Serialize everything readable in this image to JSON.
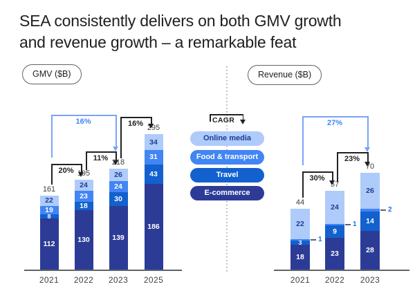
{
  "title": {
    "line1": "SEA consistently delivers on both GMV growth",
    "line2": "and revenue growth – a remarkable feat"
  },
  "legend": {
    "cagr_label": "CAGR",
    "items": [
      {
        "label": "Online media",
        "bg": "#aecbfa",
        "fg": "#1c3e94"
      },
      {
        "label": "Food & transport",
        "bg": "#4285f4",
        "fg": "#ffffff"
      },
      {
        "label": "Travel",
        "bg": "#1261cf",
        "fg": "#ffffff"
      },
      {
        "label": "E-commerce",
        "bg": "#2c3c96",
        "fg": "#ffffff"
      }
    ]
  },
  "colors": {
    "accent_blue_text": "#4285f4",
    "accent_blue_line": "#7aa3f7",
    "black": "#202124",
    "light_segment_text": "#1c3e94",
    "gray_text": "#3c4043"
  },
  "chart_data": [
    {
      "id": "gmv",
      "type": "bar",
      "title": "GMV ($B)",
      "categories": [
        "2021",
        "2022",
        "2023",
        "2025"
      ],
      "totals": [
        161,
        195,
        218,
        295
      ],
      "series": [
        {
          "name": "E-commerce",
          "color": "#2c3c96",
          "values": [
            112,
            130,
            139,
            186
          ]
        },
        {
          "name": "Travel",
          "color": "#1261cf",
          "values": [
            8,
            18,
            30,
            43
          ]
        },
        {
          "name": "Food & transport",
          "color": "#4285f4",
          "values": [
            19,
            23,
            24,
            31
          ]
        },
        {
          "name": "Online media",
          "color": "#aecbfa",
          "values": [
            22,
            24,
            26,
            34
          ]
        }
      ],
      "cagr_arrows": [
        {
          "label": "20%",
          "from": 0,
          "to": 1,
          "style": "black"
        },
        {
          "label": "11%",
          "from": 1,
          "to": 2,
          "style": "black"
        },
        {
          "label": "16%",
          "from": 2,
          "to": 3,
          "style": "black"
        },
        {
          "label": "16%",
          "from": 0,
          "to": 2,
          "style": "blue"
        }
      ]
    },
    {
      "id": "revenue",
      "type": "bar",
      "title": "Revenue ($B)",
      "categories": [
        "2021",
        "2022",
        "2023"
      ],
      "totals": [
        44,
        57,
        70
      ],
      "series": [
        {
          "name": "E-commerce",
          "color": "#2c3c96",
          "values": [
            18,
            23,
            28
          ]
        },
        {
          "name": "Travel",
          "color": "#1261cf",
          "values": [
            3,
            9,
            14
          ]
        },
        {
          "name": "Food & transport",
          "color": "#4285f4",
          "values": [
            1,
            1,
            2
          ],
          "callout": true
        },
        {
          "name": "Online media",
          "color": "#aecbfa",
          "values": [
            22,
            24,
            26
          ]
        }
      ],
      "cagr_arrows": [
        {
          "label": "30%",
          "from": 0,
          "to": 1,
          "style": "black"
        },
        {
          "label": "23%",
          "from": 1,
          "to": 2,
          "style": "black"
        },
        {
          "label": "27%",
          "from": 0,
          "to": 2,
          "style": "blue"
        }
      ]
    }
  ]
}
